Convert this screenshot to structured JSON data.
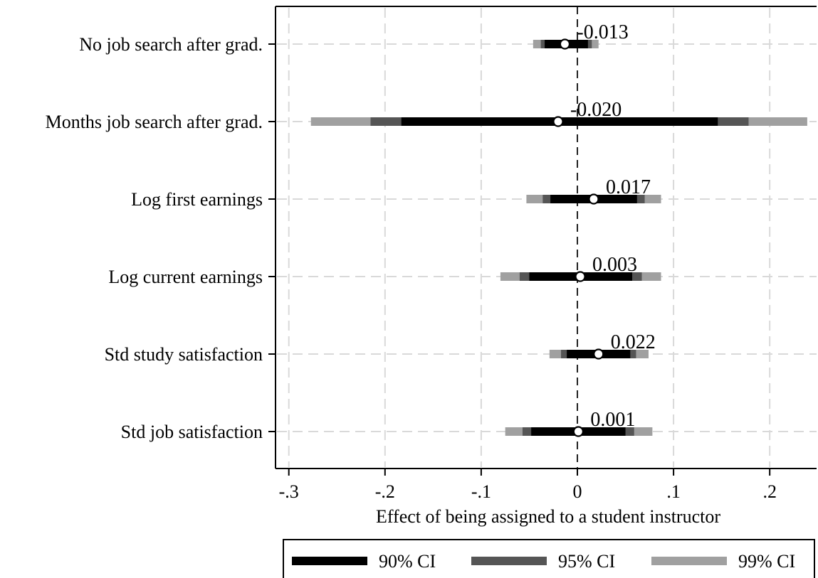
{
  "chart_data": {
    "type": "coefficient-plot",
    "xlabel": "Effect of being assigned to a student instructor",
    "xlim": [
      -0.305,
      0.245
    ],
    "x_ticks": [
      -0.3,
      -0.2,
      -0.1,
      0,
      0.1,
      0.2
    ],
    "x_tick_labels": [
      "-.3",
      "-.2",
      "-.1",
      "0",
      ".1",
      ".2"
    ],
    "grid": true,
    "zero_line": true,
    "categories": [
      "No job search after grad.",
      "Months job search after grad.",
      "Log first earnings",
      "Log current earnings",
      "Std study satisfaction",
      "Std job satisfaction"
    ],
    "estimates": [
      -0.013,
      -0.02,
      0.017,
      0.003,
      0.022,
      0.001
    ],
    "value_labels": [
      "-0.013",
      "-0.020",
      "0.017",
      "0.003",
      "0.022",
      "0.001"
    ],
    "series": [
      {
        "name": "90% CI",
        "color": "#000000",
        "intervals": [
          [
            -0.034,
            0.011
          ],
          [
            -0.183,
            0.146
          ],
          [
            -0.028,
            0.062
          ],
          [
            -0.05,
            0.057
          ],
          [
            -0.011,
            0.055
          ],
          [
            -0.048,
            0.05
          ]
        ]
      },
      {
        "name": "95% CI",
        "color": "#555555",
        "intervals": [
          [
            -0.038,
            0.015
          ],
          [
            -0.215,
            0.178
          ],
          [
            -0.036,
            0.07
          ],
          [
            -0.06,
            0.067
          ],
          [
            -0.017,
            0.061
          ],
          [
            -0.057,
            0.059
          ]
        ]
      },
      {
        "name": "99% CI",
        "color": "#a0a0a0",
        "intervals": [
          [
            -0.046,
            0.022
          ],
          [
            -0.277,
            0.239
          ],
          [
            -0.053,
            0.087
          ],
          [
            -0.08,
            0.087
          ],
          [
            -0.029,
            0.074
          ],
          [
            -0.075,
            0.078
          ]
        ]
      }
    ],
    "legend": {
      "placement": "bottom",
      "entries": [
        "90% CI",
        "95% CI",
        "99% CI"
      ]
    }
  }
}
